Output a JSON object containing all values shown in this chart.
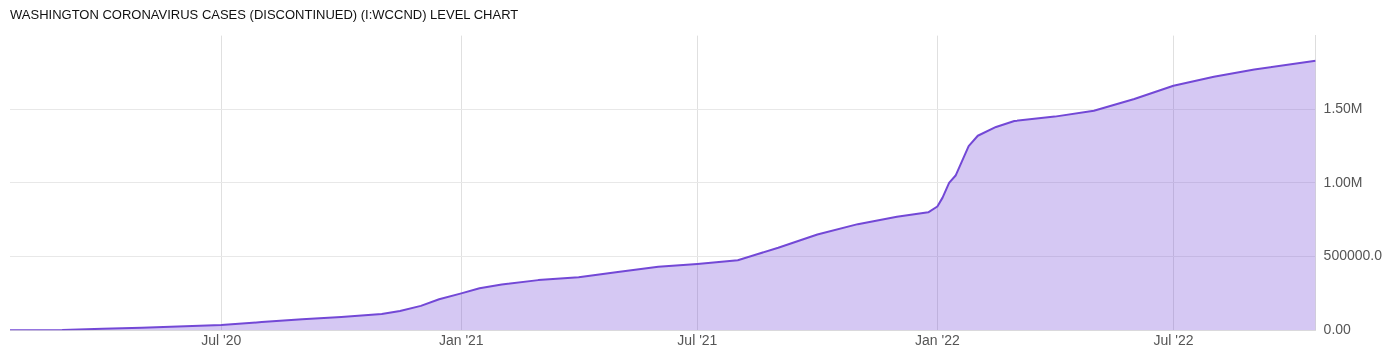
{
  "chart_data": {
    "type": "area",
    "title": "WASHINGTON CORONAVIRUS CASES (DISCONTINUED) (I:WCCND) LEVEL CHART",
    "x": [
      "2020-01-21",
      "2020-03-01",
      "2020-04-01",
      "2020-05-01",
      "2020-07-01",
      "2020-08-01",
      "2020-09-01",
      "2020-10-01",
      "2020-11-01",
      "2020-11-15",
      "2020-12-01",
      "2020-12-15",
      "2021-01-01",
      "2021-01-15",
      "2021-02-01",
      "2021-03-01",
      "2021-04-01",
      "2021-05-01",
      "2021-06-01",
      "2021-07-01",
      "2021-08-01",
      "2021-09-01",
      "2021-10-01",
      "2021-11-01",
      "2021-12-01",
      "2021-12-25",
      "2022-01-01",
      "2022-01-05",
      "2022-01-10",
      "2022-01-15",
      "2022-01-20",
      "2022-01-25",
      "2022-02-01",
      "2022-02-15",
      "2022-03-01",
      "2022-04-01",
      "2022-05-01",
      "2022-06-01",
      "2022-07-01",
      "2022-08-01",
      "2022-09-01",
      "2022-10-18"
    ],
    "series": [
      {
        "color": "#7348d6",
        "values": [
          0,
          1000,
          10000,
          17000,
          35000,
          55000,
          75000,
          90000,
          110000,
          130000,
          165000,
          210000,
          250000,
          285000,
          310000,
          340000,
          360000,
          395000,
          430000,
          450000,
          475000,
          560000,
          650000,
          720000,
          770000,
          800000,
          840000,
          900000,
          1000000,
          1050000,
          1150000,
          1250000,
          1320000,
          1380000,
          1420000,
          1450000,
          1490000,
          1570000,
          1660000,
          1720000,
          1770000,
          1830000
        ]
      }
    ],
    "xlim": [
      "2020-01-21",
      "2022-10-18"
    ],
    "xticks": [
      {
        "value": "2020-07-01",
        "label": "Jul '20"
      },
      {
        "value": "2021-01-01",
        "label": "Jan '21"
      },
      {
        "value": "2021-07-01",
        "label": "Jul '21"
      },
      {
        "value": "2022-01-01",
        "label": "Jan '22"
      },
      {
        "value": "2022-07-01",
        "label": "Jul '22"
      }
    ],
    "ylim": [
      0,
      2000000
    ],
    "yticks": [
      {
        "value": 0,
        "label": "0.00"
      },
      {
        "value": 500000,
        "label": "500000.0"
      },
      {
        "value": 1000000,
        "label": "1.00M"
      },
      {
        "value": 1500000,
        "label": "1.50M"
      }
    ],
    "grid": true,
    "legend": false
  }
}
